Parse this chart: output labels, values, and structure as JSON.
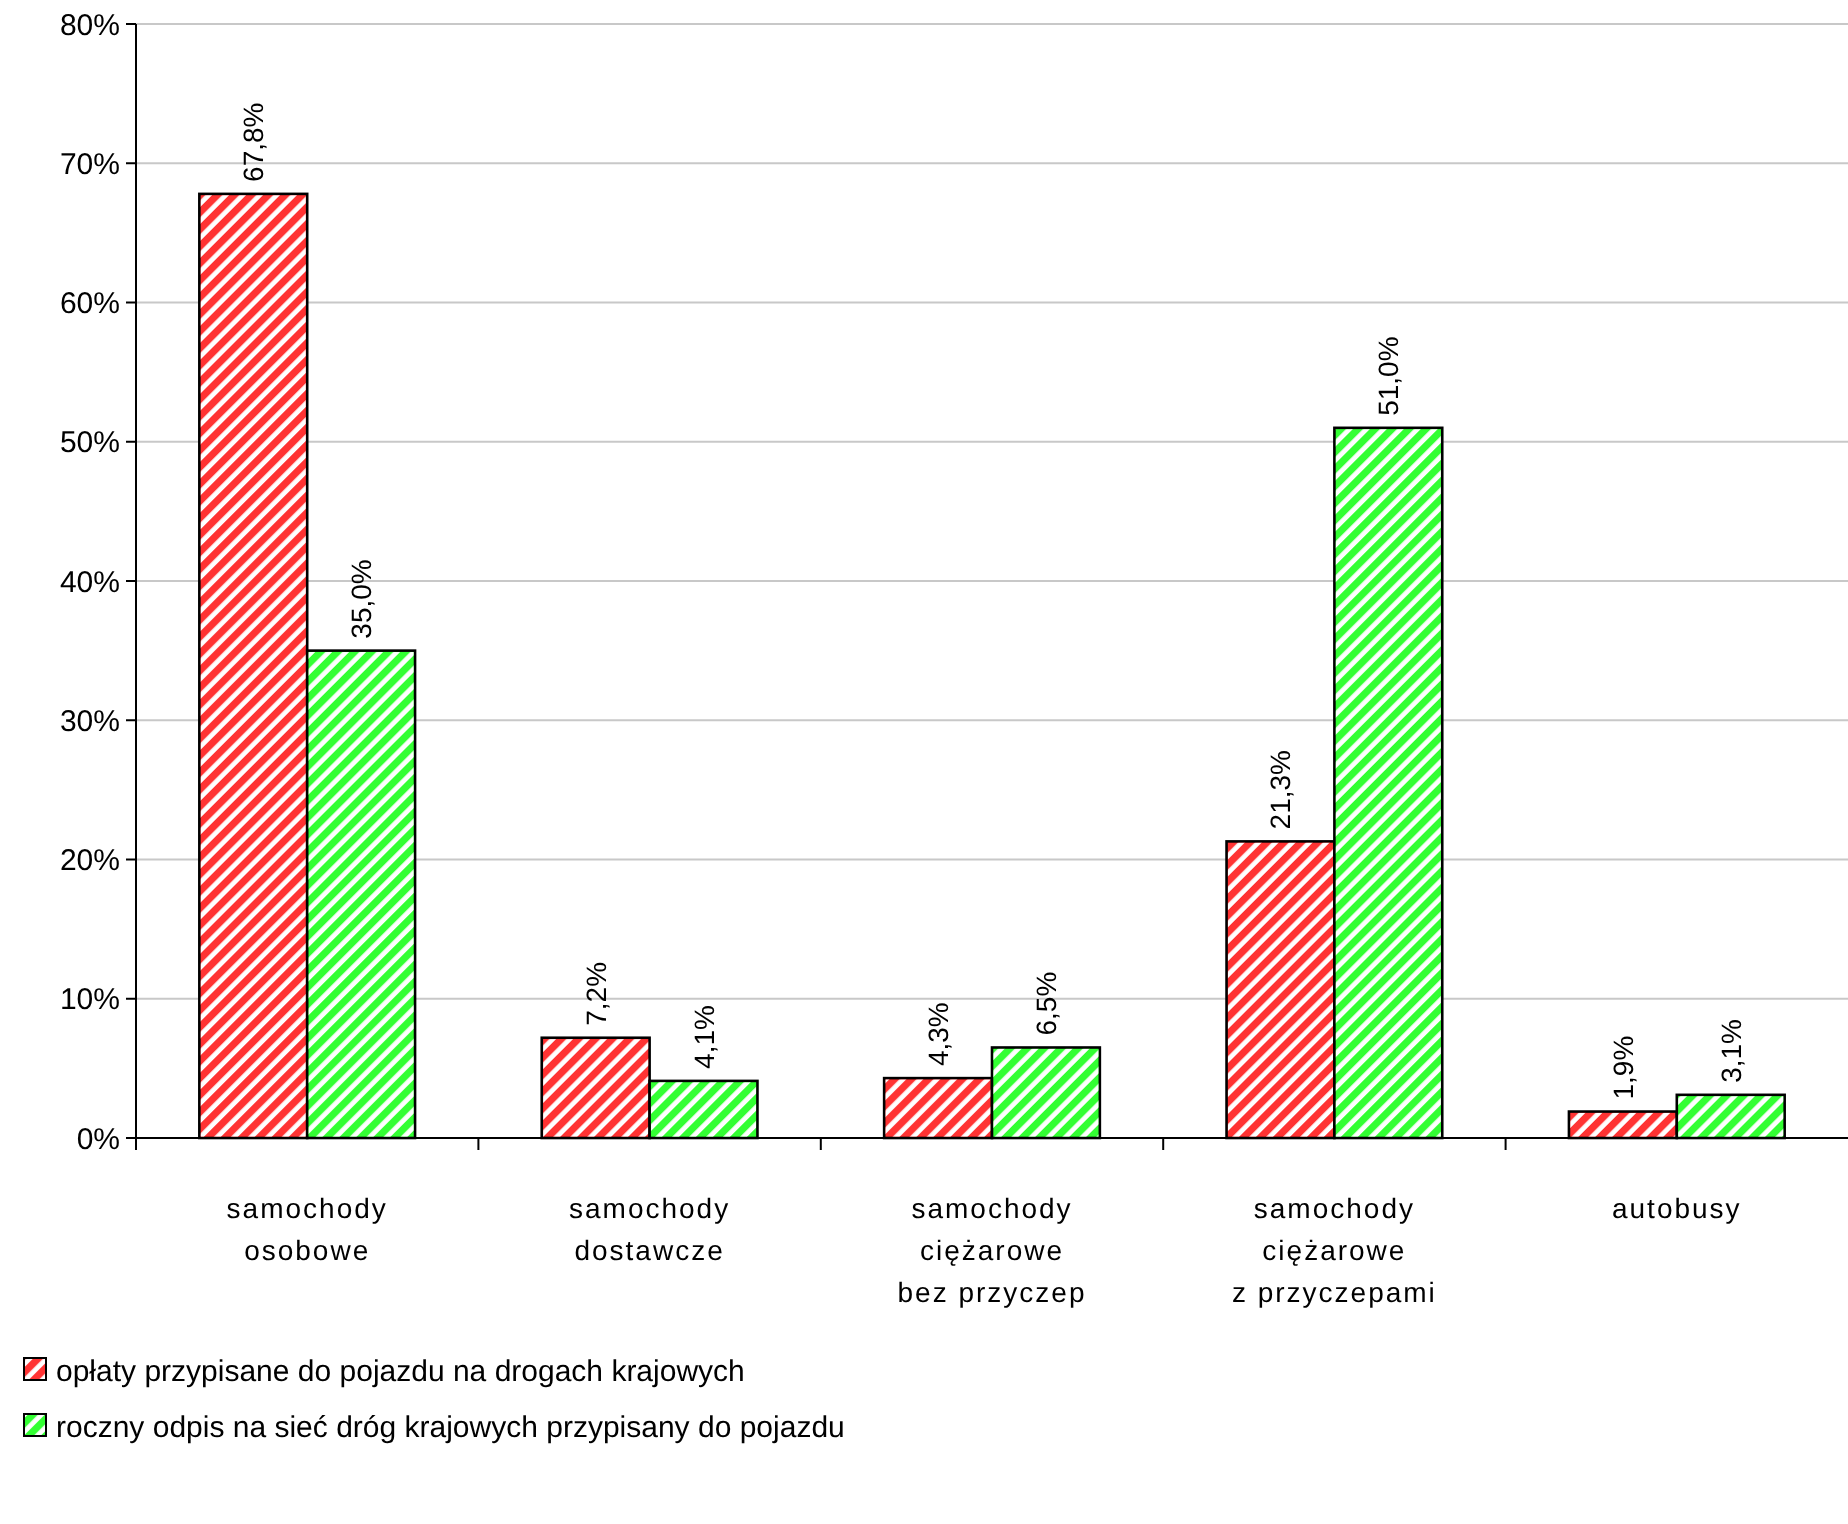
{
  "chart_data": {
    "type": "bar",
    "categories": [
      "samochody\nosobowe",
      "samochody\ndostawcze",
      "samochody\nciężarowe\nbez przyczep",
      "samochody\nciężarowe\nz przyczepami",
      "autobusy"
    ],
    "series": [
      {
        "name": "opłaty przypisane do pojazdu na drogach krajowych",
        "color": "#ff3333",
        "values": [
          67.8,
          7.2,
          4.3,
          21.3,
          1.9
        ],
        "value_labels": [
          "67,8%",
          "7,2%",
          "4,3%",
          "21,3%",
          "1,9%"
        ]
      },
      {
        "name": "roczny odpis na sieć dróg krajowych przypisany do pojazdu",
        "color": "#33ff33",
        "values": [
          35.0,
          4.1,
          6.5,
          51.0,
          3.1
        ],
        "value_labels": [
          "35,0%",
          "4,1%",
          "6,5%",
          "51,0%",
          "3,1%"
        ]
      }
    ],
    "ylim": [
      0,
      80
    ],
    "yticks": [
      {
        "value": 0,
        "label": "0%"
      },
      {
        "value": 10,
        "label": "10%"
      },
      {
        "value": 20,
        "label": "20%"
      },
      {
        "value": 30,
        "label": "30%"
      },
      {
        "value": 40,
        "label": "40%"
      },
      {
        "value": 50,
        "label": "50%"
      },
      {
        "value": 60,
        "label": "60%"
      },
      {
        "value": 70,
        "label": "70%"
      },
      {
        "value": 80,
        "label": "80%"
      }
    ],
    "grid": "y",
    "legend": "bottom"
  }
}
